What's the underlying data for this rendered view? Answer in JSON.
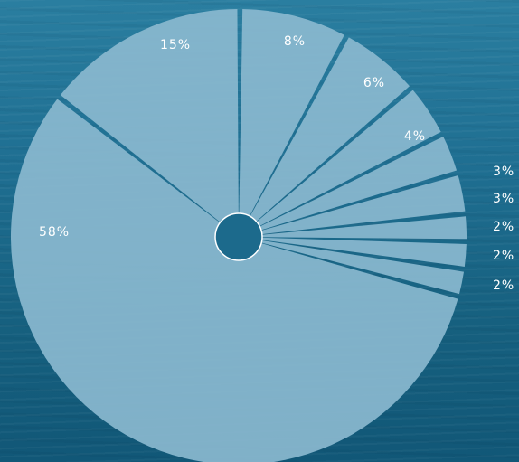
{
  "chart_data": {
    "type": "pie",
    "values": [
      8,
      6,
      4,
      3,
      3,
      2,
      2,
      2,
      58,
      15
    ],
    "labels": [
      "8%",
      "6%",
      "4%",
      "3%",
      "3%",
      "2%",
      "2%",
      "2%",
      "58%",
      "15%"
    ],
    "colors": {
      "slice": "#8ab9cf",
      "gap": "#1c6a8c",
      "label": "#ffffff",
      "background": "#1f6f92"
    }
  }
}
